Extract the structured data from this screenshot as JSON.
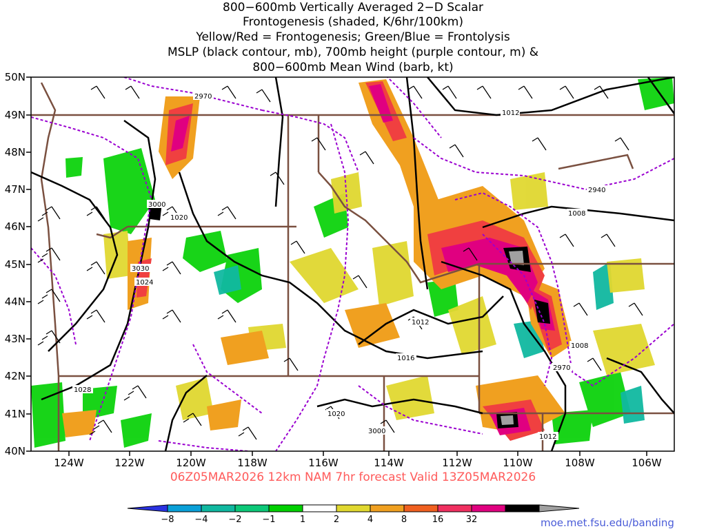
{
  "title": {
    "line1": "800−600mb Vertically Averaged 2−D Scalar",
    "line2": "Frontogenesis (shaded, K/6hr/100km)",
    "line3": "Yellow/Red = Frontogenesis;  Green/Blue = Frontolysis",
    "line4": "MSLP (black contour, mb), 700mb height (purple contour, m) &",
    "line5": "800−600mb Mean Wind (barb, kt)"
  },
  "footer": "06Z05MAR2026 12km NAM 7hr forecast Valid 13Z05MAR2026",
  "url": "moe.met.fsu.edu/banding",
  "lat_labels": [
    "50N",
    "49N",
    "48N",
    "47N",
    "46N",
    "45N",
    "44N",
    "43N",
    "42N",
    "41N",
    "40N"
  ],
  "lon_labels": [
    "124W",
    "122W",
    "120W",
    "118W",
    "116W",
    "114W",
    "112W",
    "110W",
    "108W",
    "106W"
  ],
  "mslp_labels": [
    "1012",
    "1020",
    "1008",
    "1024",
    "1012",
    "1008",
    "1016",
    "1028",
    "1020",
    "1012"
  ],
  "height_labels": [
    "2970",
    "3000",
    "3030",
    "2940",
    "2970",
    "3000"
  ],
  "colorbar": {
    "ticks": [
      "−8",
      "−4",
      "−2",
      "−1",
      "1",
      "2",
      "4",
      "8",
      "16",
      "32"
    ],
    "colors": [
      "#2a32e0",
      "#0aa0d8",
      "#10b8a0",
      "#0cc878",
      "#00d000",
      "#ffffff",
      "#e0d830",
      "#f0a020",
      "#f06020",
      "#f03060",
      "#e00080",
      "#000000",
      "#a0a0a0"
    ]
  },
  "map_colors": {
    "frontogenesis_weak": "#e0d830",
    "frontogenesis_mod": "#f0a020",
    "frontogenesis_strong": "#f04040",
    "frontogenesis_max": "#e00080",
    "frontolysis_weak": "#00d000",
    "frontolysis_mod": "#10b8a0",
    "mslp_contour": "#000000",
    "height_contour": "#9a00d0",
    "borders": "#7a5040"
  }
}
